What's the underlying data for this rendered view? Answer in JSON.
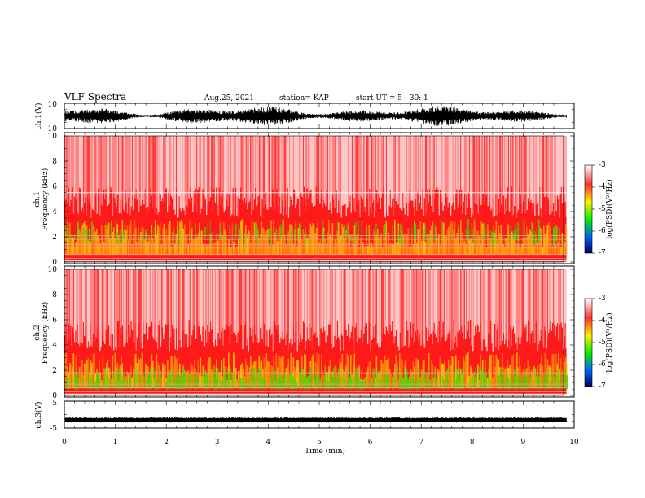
{
  "header": {
    "title": "VLF Spectra",
    "date": "Aug.25, 2021",
    "station": "station= KAP",
    "start": "start  UT =   5 : 30: 1"
  },
  "chart_data": [
    {
      "type": "line",
      "title": "",
      "ylabel": "ch.1(V)",
      "xlim": [
        0,
        10
      ],
      "ylim": [
        -10,
        10
      ],
      "ytick_labels": [
        "10",
        "-10"
      ],
      "signal_range": [
        -8,
        8
      ]
    },
    {
      "type": "heatmap",
      "ylabel_line1": "ch.1",
      "ylabel_line2": "Frequency  (kHz)",
      "xlim": [
        0,
        10
      ],
      "ylim": [
        0,
        10
      ],
      "yticks": [
        0,
        2,
        4,
        6,
        8,
        10
      ],
      "colorbar": {
        "label": "log(PSD)(V²/Hz)",
        "range": [
          -7,
          -3
        ],
        "tick_labels": [
          "-3",
          "-4",
          "-5",
          "-6",
          "-7"
        ]
      }
    },
    {
      "type": "heatmap",
      "ylabel_line1": "ch.2",
      "ylabel_line2": "Frequency  (kHz)",
      "xlim": [
        0,
        10
      ],
      "ylim": [
        0,
        10
      ],
      "yticks": [
        0,
        2,
        4,
        6,
        8,
        10
      ],
      "colorbar": {
        "label": "log(PSD)(V²/Hz)",
        "range": [
          -7,
          -3
        ],
        "tick_labels": [
          "-3",
          "-4",
          "-5",
          "-6",
          "-7"
        ]
      }
    },
    {
      "type": "line",
      "ylabel": "ch.3(V)",
      "xlim": [
        0,
        10
      ],
      "ylim": [
        -5,
        5
      ],
      "ytick_labels": [
        "5",
        "-5"
      ],
      "signal_level": -2,
      "xlabel": "Time  (min)",
      "xtick_labels": [
        "0",
        "1",
        "2",
        "3",
        "4",
        "5",
        "6",
        "7",
        "8",
        "9",
        "10"
      ],
      "data_end_x": 9.85
    }
  ],
  "colors": {
    "spectrum_background": "#ffffff",
    "spectrum_red": "#ff1a1a",
    "spectrum_yellow": "#ffd400",
    "spectrum_green": "#33dd00",
    "colorbar_stops": [
      "#ffffff",
      "#ff0000",
      "#ffff00",
      "#00ff00",
      "#0080ff",
      "#000080"
    ],
    "trace": "#000000"
  }
}
